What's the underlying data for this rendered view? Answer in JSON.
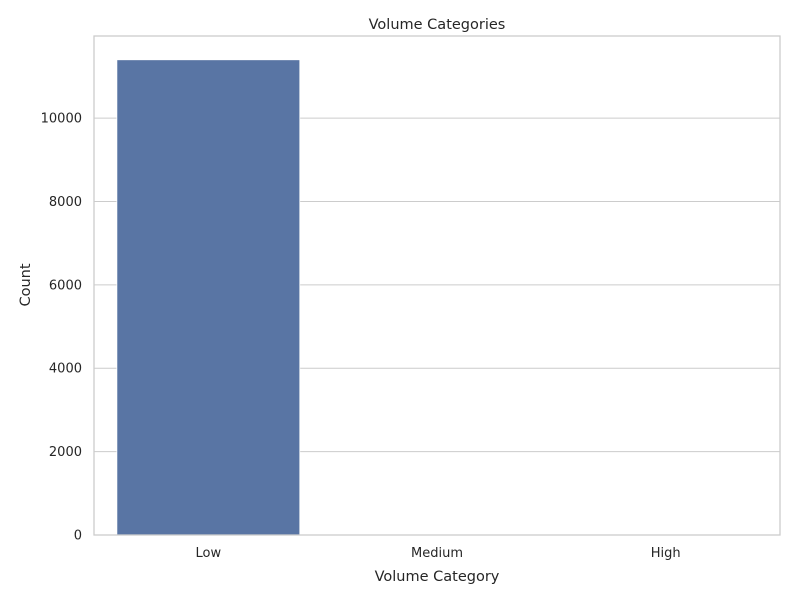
{
  "chart_data": {
    "type": "bar",
    "title": "Volume Categories",
    "xlabel": "Volume Category",
    "ylabel": "Count",
    "categories": [
      "Low",
      "Medium",
      "High"
    ],
    "values": [
      11400,
      0,
      0
    ],
    "ylim": [
      0,
      11970
    ],
    "yticks": [
      0,
      2000,
      4000,
      6000,
      8000,
      10000
    ],
    "ytick_labels": [
      "0",
      "2000",
      "4000",
      "6000",
      "8000",
      "10000"
    ],
    "grid": "horizontal",
    "bar_color": "#5975a4"
  }
}
